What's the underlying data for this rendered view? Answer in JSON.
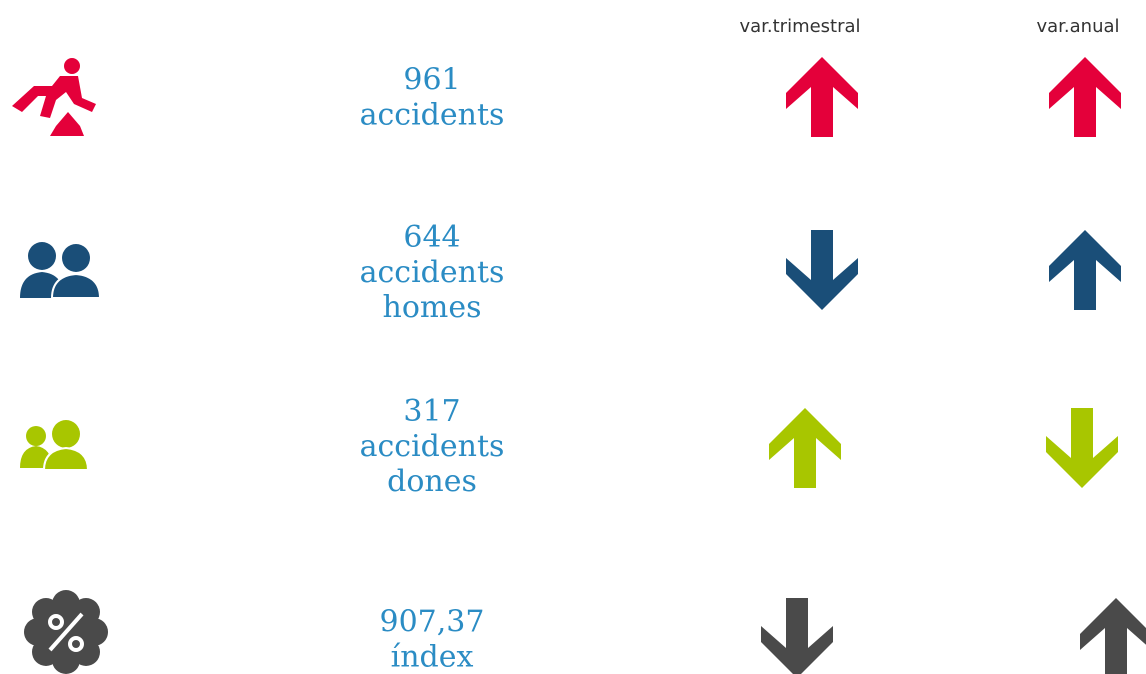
{
  "header": {
    "quarterly": "var.trimestral",
    "annual": "var.anual"
  },
  "rows": [
    {
      "value": "961",
      "label": [
        "accidents"
      ]
    },
    {
      "value": "644",
      "label": [
        "accidents",
        "homes"
      ]
    },
    {
      "value": "317",
      "label": [
        "accidents",
        "dones"
      ]
    },
    {
      "value": "907,37",
      "label": [
        "índex"
      ]
    }
  ]
}
